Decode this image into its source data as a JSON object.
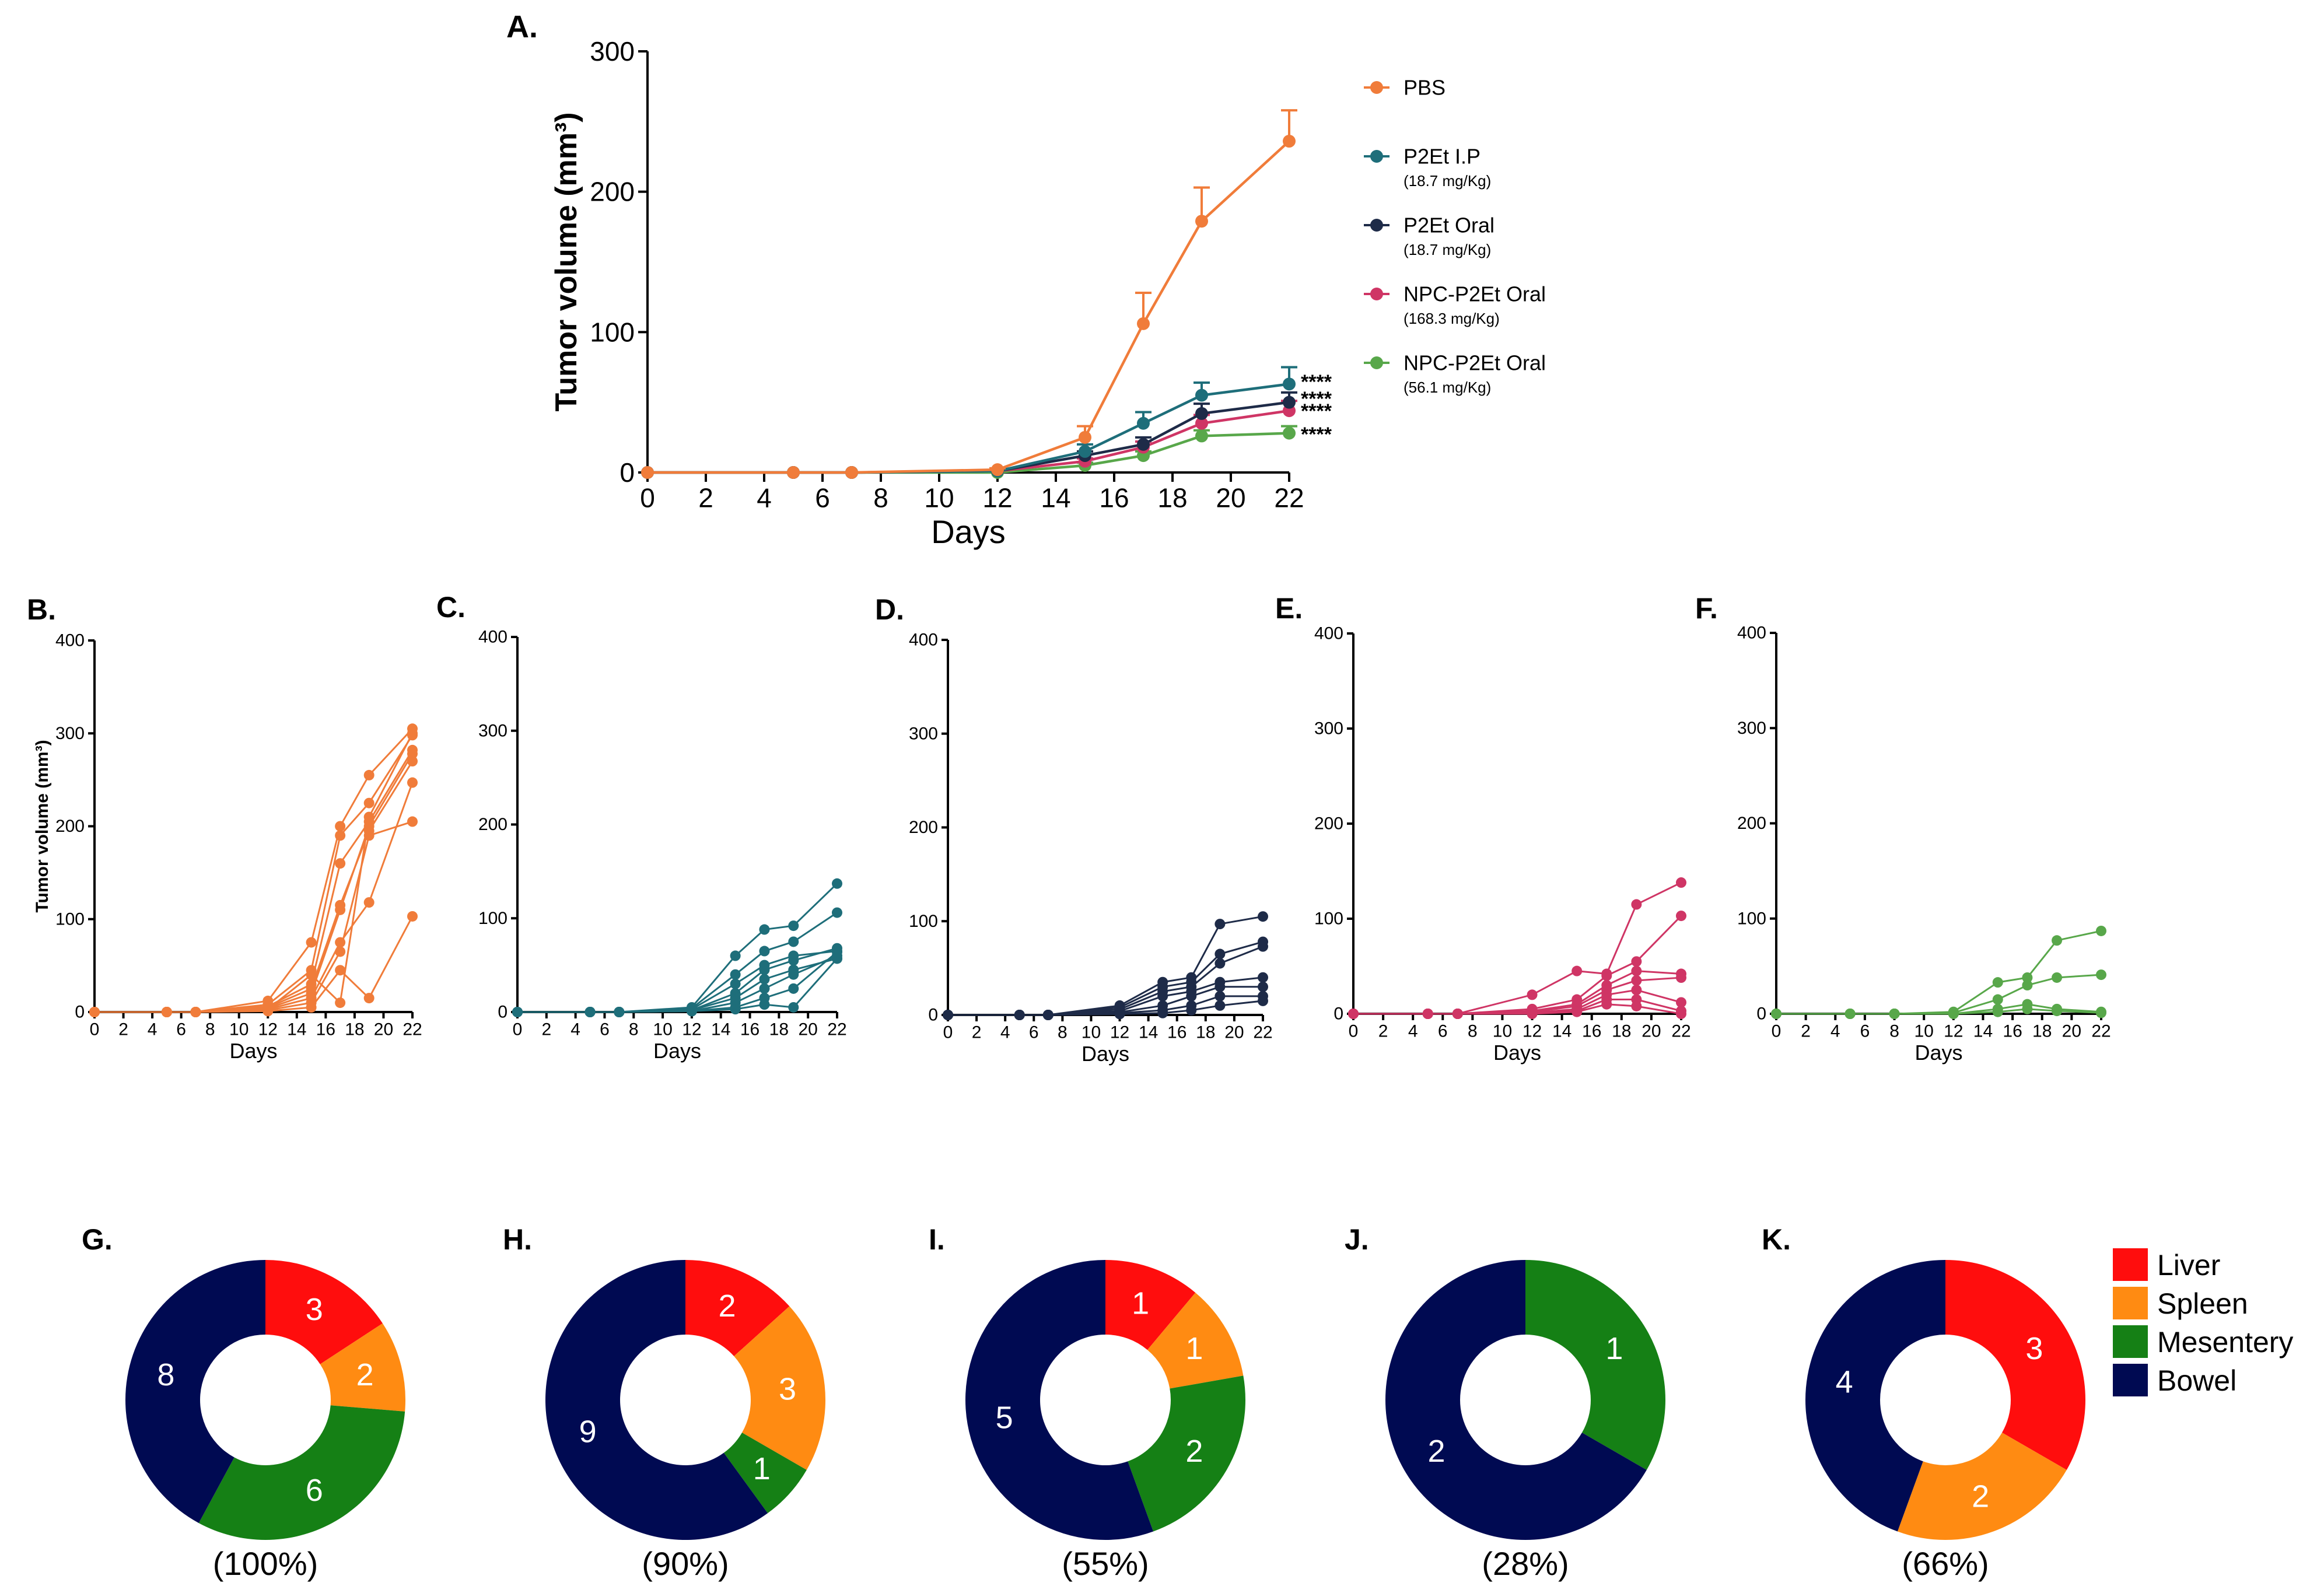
{
  "colors": {
    "pbs": "#f07c3a",
    "p2et_ip": "#1e6e7a",
    "p2et_oral": "#1e2b48",
    "npc_168": "#cf3565",
    "npc_56": "#58a74a",
    "liver": "#ff0d0d",
    "spleen": "#ff8b12",
    "mesentery": "#158015",
    "bowel": "#000a52"
  },
  "chart_data": [
    {
      "id": "A",
      "panel_label": "A.",
      "type": "line",
      "xlabel": "Days",
      "ylabel": "Tumor volume (mm³)",
      "xlim": [
        0,
        22
      ],
      "ylim": [
        0,
        300
      ],
      "xticks": [
        "0",
        "2",
        "4",
        "6",
        "8",
        "10",
        "12",
        "14",
        "16",
        "18",
        "20",
        "22"
      ],
      "yticks": [
        "0",
        "100",
        "200",
        "300"
      ],
      "x": [
        0,
        5,
        7,
        12,
        15,
        17,
        19,
        22
      ],
      "series": [
        {
          "name": "PBS",
          "sub": "",
          "color": "pbs",
          "values": [
            0,
            0,
            0,
            2,
            25,
            106,
            179,
            236
          ],
          "err": [
            0,
            0,
            0,
            1,
            8,
            22,
            24,
            22
          ]
        },
        {
          "name": "P2Et I.P",
          "sub": "(18.7 mg/Kg)",
          "color": "p2et_ip",
          "values": [
            0,
            0,
            0,
            1,
            15,
            35,
            55,
            63
          ],
          "err": [
            0,
            0,
            0,
            1,
            5,
            8,
            9,
            12
          ]
        },
        {
          "name": "P2Et Oral",
          "sub": "(18.7 mg/Kg)",
          "color": "p2et_oral",
          "values": [
            0,
            0,
            0,
            1,
            12,
            20,
            42,
            50
          ],
          "err": [
            0,
            0,
            0,
            1,
            3,
            5,
            7,
            7
          ]
        },
        {
          "name": "NPC-P2Et Oral",
          "sub": "(168.3 mg/Kg)",
          "color": "npc_168",
          "values": [
            0,
            0,
            0,
            1,
            8,
            18,
            35,
            44
          ],
          "err": [
            0,
            0,
            0,
            1,
            2,
            4,
            6,
            7
          ]
        },
        {
          "name": "NPC-P2Et Oral",
          "sub": "(56.1 mg/Kg)",
          "color": "npc_56",
          "values": [
            0,
            0,
            0,
            0,
            5,
            12,
            26,
            28
          ],
          "err": [
            0,
            0,
            0,
            0,
            2,
            3,
            4,
            5
          ]
        }
      ],
      "significance": [
        "****",
        "****",
        "****",
        "****"
      ]
    },
    {
      "id": "B",
      "panel_label": "B.",
      "type": "line",
      "color": "pbs",
      "xlabel": "Days",
      "ylabel": "Tumor volume (mm³)",
      "xlim": [
        0,
        22
      ],
      "ylim": [
        0,
        400
      ],
      "xticks": [
        "0",
        "2",
        "4",
        "6",
        "8",
        "10",
        "12",
        "14",
        "16",
        "18",
        "20",
        "22"
      ],
      "yticks": [
        "0",
        "100",
        "200",
        "300",
        "400"
      ],
      "x": [
        0,
        5,
        7,
        12,
        15,
        17,
        19,
        22
      ],
      "individuals": [
        [
          0,
          0,
          0,
          12,
          75,
          200,
          255,
          305
        ],
        [
          0,
          0,
          0,
          8,
          45,
          190,
          225,
          298
        ],
        [
          0,
          0,
          0,
          6,
          30,
          160,
          205,
          282
        ],
        [
          0,
          0,
          0,
          5,
          25,
          115,
          195,
          270
        ],
        [
          0,
          0,
          0,
          4,
          20,
          110,
          200,
          278
        ],
        [
          0,
          0,
          0,
          3,
          15,
          75,
          118,
          247
        ],
        [
          0,
          0,
          0,
          2,
          10,
          65,
          190,
          205
        ],
        [
          0,
          0,
          0,
          1,
          5,
          45,
          15,
          103
        ],
        [
          0,
          0,
          0,
          3,
          40,
          10,
          210,
          300
        ]
      ]
    },
    {
      "id": "C",
      "panel_label": "C.",
      "type": "line",
      "color": "p2et_ip",
      "xlabel": "Days",
      "ylabel": "",
      "xlim": [
        0,
        22
      ],
      "ylim": [
        0,
        400
      ],
      "xticks": [
        "0",
        "2",
        "4",
        "6",
        "8",
        "10",
        "12",
        "14",
        "16",
        "18",
        "20",
        "22"
      ],
      "yticks": [
        "0",
        "100",
        "200",
        "300",
        "400"
      ],
      "x": [
        0,
        5,
        7,
        12,
        15,
        17,
        19,
        22
      ],
      "individuals": [
        [
          0,
          0,
          0,
          5,
          60,
          88,
          92,
          137
        ],
        [
          0,
          0,
          0,
          4,
          40,
          65,
          75,
          106
        ],
        [
          0,
          0,
          0,
          3,
          30,
          50,
          60,
          65
        ],
        [
          0,
          0,
          0,
          2,
          20,
          45,
          55,
          68
        ],
        [
          0,
          0,
          0,
          2,
          15,
          35,
          45,
          57
        ],
        [
          0,
          0,
          0,
          1,
          10,
          25,
          40,
          60
        ],
        [
          0,
          0,
          0,
          1,
          5,
          15,
          25,
          64
        ],
        [
          0,
          0,
          0,
          1,
          3,
          8,
          5,
          57
        ]
      ]
    },
    {
      "id": "D",
      "panel_label": "D.",
      "type": "line",
      "color": "p2et_oral",
      "xlabel": "Days",
      "ylabel": "",
      "xlim": [
        0,
        22
      ],
      "ylim": [
        0,
        400
      ],
      "xticks": [
        "0",
        "2",
        "4",
        "6",
        "8",
        "10",
        "12",
        "14",
        "16",
        "18",
        "20",
        "22"
      ],
      "yticks": [
        "0",
        "100",
        "200",
        "300",
        "400"
      ],
      "x": [
        0,
        5,
        7,
        12,
        15,
        17,
        19,
        22
      ],
      "individuals": [
        [
          0,
          0,
          0,
          10,
          35,
          40,
          97,
          105
        ],
        [
          0,
          0,
          0,
          8,
          30,
          35,
          65,
          78
        ],
        [
          0,
          0,
          0,
          6,
          25,
          30,
          55,
          73
        ],
        [
          0,
          0,
          0,
          4,
          20,
          25,
          35,
          40
        ],
        [
          0,
          0,
          0,
          3,
          10,
          20,
          30,
          30
        ],
        [
          0,
          0,
          0,
          2,
          5,
          10,
          20,
          20
        ],
        [
          0,
          0,
          0,
          1,
          2,
          5,
          10,
          15
        ]
      ]
    },
    {
      "id": "E",
      "panel_label": "E.",
      "type": "line",
      "color": "npc_168",
      "xlabel": "Days",
      "ylabel": "",
      "xlim": [
        0,
        22
      ],
      "ylim": [
        0,
        400
      ],
      "xticks": [
        "0",
        "2",
        "4",
        "6",
        "8",
        "10",
        "12",
        "14",
        "16",
        "18",
        "20",
        "22"
      ],
      "yticks": [
        "0",
        "100",
        "200",
        "300",
        "400"
      ],
      "x": [
        0,
        5,
        7,
        12,
        15,
        17,
        19,
        22
      ],
      "individuals": [
        [
          0,
          0,
          0,
          20,
          45,
          42,
          115,
          138
        ],
        [
          0,
          0,
          0,
          5,
          15,
          40,
          55,
          103
        ],
        [
          0,
          0,
          0,
          3,
          10,
          30,
          45,
          42
        ],
        [
          0,
          0,
          0,
          2,
          8,
          25,
          35,
          38
        ],
        [
          0,
          0,
          0,
          1,
          5,
          20,
          25,
          12
        ],
        [
          0,
          0,
          0,
          1,
          3,
          15,
          15,
          3
        ],
        [
          0,
          0,
          0,
          0,
          2,
          10,
          8,
          0
        ]
      ]
    },
    {
      "id": "F",
      "panel_label": "F.",
      "type": "line",
      "color": "npc_56",
      "xlabel": "Days",
      "ylabel": "",
      "xlim": [
        0,
        22
      ],
      "ylim": [
        0,
        400
      ],
      "xticks": [
        "0",
        "2",
        "4",
        "6",
        "8",
        "10",
        "12",
        "14",
        "16",
        "18",
        "20",
        "22"
      ],
      "yticks": [
        "0",
        "100",
        "200",
        "300",
        "400"
      ],
      "x": [
        0,
        5,
        8,
        12,
        15,
        17,
        19,
        22
      ],
      "individuals": [
        [
          0,
          0,
          0,
          2,
          33,
          38,
          77,
          87
        ],
        [
          0,
          0,
          0,
          1,
          15,
          30,
          38,
          41
        ],
        [
          0,
          0,
          0,
          0,
          5,
          10,
          5,
          2
        ],
        [
          0,
          0,
          0,
          0,
          2,
          5,
          3,
          1
        ]
      ]
    },
    {
      "id": "G",
      "panel_label": "G.",
      "type": "pie",
      "categories": [
        "Liver",
        "Spleen",
        "Mesentery",
        "Bowel"
      ],
      "values": [
        3,
        2,
        6,
        8
      ],
      "labels": [
        "3",
        "2",
        "6",
        "8"
      ],
      "caption": "(100%)"
    },
    {
      "id": "H",
      "panel_label": "H.",
      "type": "pie",
      "categories": [
        "Liver",
        "Spleen",
        "Mesentery",
        "Bowel"
      ],
      "values": [
        2,
        3,
        1,
        9
      ],
      "labels": [
        "2",
        "3",
        "1",
        "9"
      ],
      "caption": "(90%)"
    },
    {
      "id": "I",
      "panel_label": "I.",
      "type": "pie",
      "categories": [
        "Liver",
        "Spleen",
        "Mesentery",
        "Bowel"
      ],
      "values": [
        1,
        1,
        2,
        5
      ],
      "labels": [
        "1",
        "1",
        "2",
        "5"
      ],
      "caption": "(55%)"
    },
    {
      "id": "J",
      "panel_label": "J.",
      "type": "pie",
      "categories": [
        "Liver",
        "Spleen",
        "Mesentery",
        "Bowel"
      ],
      "values": [
        0,
        0,
        1,
        2
      ],
      "labels": [
        "",
        "",
        "1",
        "2"
      ],
      "caption": "(28%)"
    },
    {
      "id": "K",
      "panel_label": "K.",
      "type": "pie",
      "categories": [
        "Liver",
        "Spleen",
        "Mesentery",
        "Bowel"
      ],
      "values": [
        3,
        2,
        0,
        4
      ],
      "labels": [
        "3",
        "2",
        "",
        "4"
      ],
      "caption": "(66%)"
    }
  ],
  "pie_legend": [
    {
      "label": "Liver",
      "color": "liver"
    },
    {
      "label": "Spleen",
      "color": "spleen"
    },
    {
      "label": "Mesentery",
      "color": "mesentery"
    },
    {
      "label": "Bowel",
      "color": "bowel"
    }
  ]
}
